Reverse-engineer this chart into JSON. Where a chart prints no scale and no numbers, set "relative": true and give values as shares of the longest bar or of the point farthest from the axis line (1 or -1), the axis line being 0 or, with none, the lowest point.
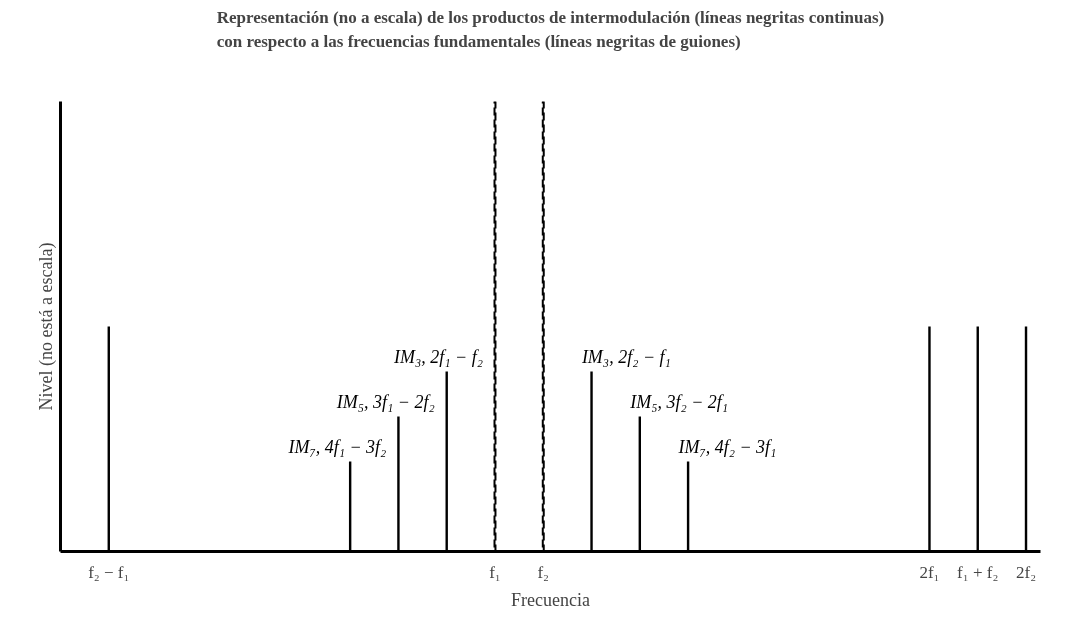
{
  "chart_data": {
    "type": "bar",
    "title": "Representación (no a escala) de los productos de intermodulación (líneas negritas continuas)\ncon respecto a las frecuencias fundamentales (líneas negritas de guiones)",
    "xlabel": "Frecuencia",
    "ylabel": "Nivel (no está a escala)",
    "relative": true,
    "categories": [
      "f₂ − f₁",
      null,
      null,
      null,
      null,
      null,
      null,
      null,
      "f₁",
      "f₂",
      null,
      null,
      null,
      null,
      null,
      null,
      null,
      "2f₁",
      "f₁ + f₂",
      "2f₂"
    ],
    "series": [
      {
        "color": "#000000",
        "line_style": "solid",
        "values": [
          0.5,
          null,
          null,
          null,
          null,
          0.2,
          0.3,
          0.4,
          null,
          null,
          0.4,
          0.3,
          0.2,
          null,
          null,
          null,
          null,
          0.5,
          0.5,
          0.5
        ]
      },
      {
        "color": "#000000",
        "line_style": "dashed",
        "values": [
          null,
          null,
          null,
          null,
          null,
          null,
          null,
          null,
          1,
          1,
          null,
          null,
          null,
          null,
          null,
          null,
          null,
          null,
          null,
          null
        ]
      }
    ],
    "annotations": [
      "IM₇, 4f₁ − 3f₂",
      "IM₅, 3f₁ − 2f₂",
      "IM₃, 2f₁ − f₂",
      "IM₃, 2f₂ − f₁",
      "IM₅, 3f₂ − 2f₁",
      "IM₇, 4f₂ − 3f₁"
    ]
  }
}
